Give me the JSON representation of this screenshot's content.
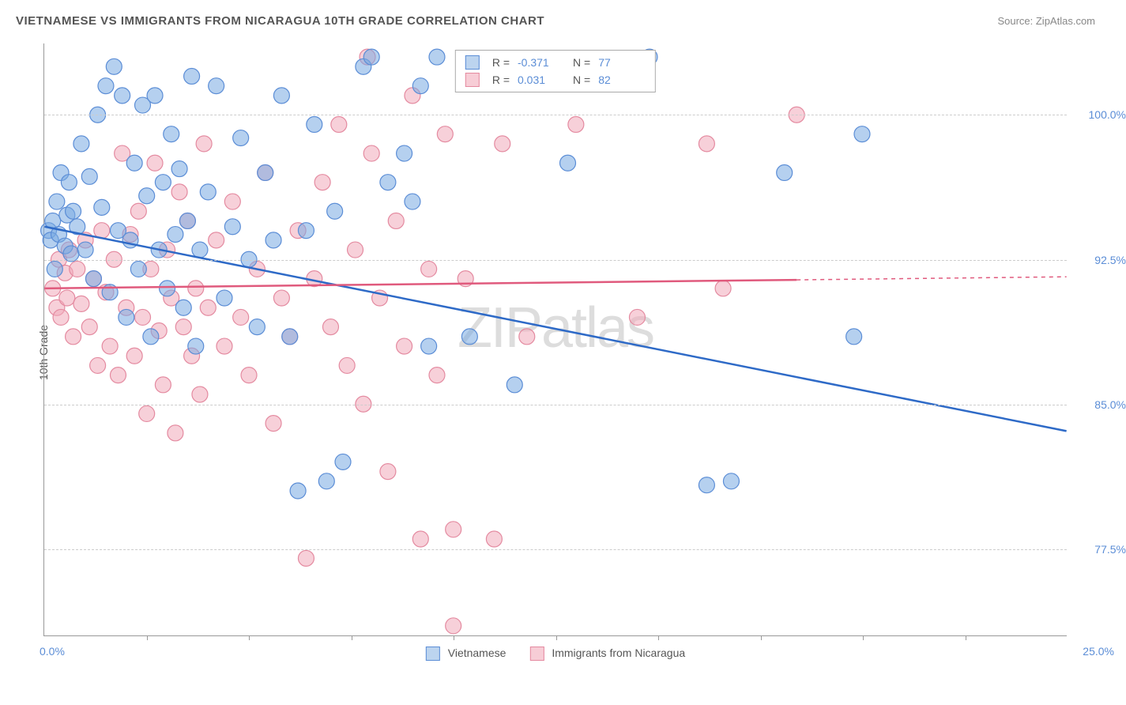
{
  "title": "VIETNAMESE VS IMMIGRANTS FROM NICARAGUA 10TH GRADE CORRELATION CHART",
  "source": "Source: ZipAtlas.com",
  "watermark": "ZIPatlas",
  "axes": {
    "y_label": "10th Grade",
    "x_min": 0.0,
    "x_max": 25.0,
    "y_min": 73.0,
    "y_max": 103.7,
    "y_ticks": [
      77.5,
      85.0,
      92.5,
      100.0
    ],
    "y_tick_labels": [
      "77.5%",
      "85.0%",
      "92.5%",
      "100.0%"
    ],
    "x_ticks_minor": [
      2.5,
      5.0,
      7.5,
      10.0,
      12.5,
      15.0,
      17.5,
      20.0,
      22.5
    ],
    "x_tick_labels": {
      "0": "0.0%",
      "25": "25.0%"
    },
    "grid_color": "#cccccc",
    "axis_color": "#999999"
  },
  "legend_bottom": {
    "series_a": {
      "label": "Vietnamese",
      "fill": "#bcd4ef",
      "stroke": "#5b8dd6"
    },
    "series_b": {
      "label": "Immigrants from Nicaragua",
      "fill": "#f7cdd6",
      "stroke": "#e48aa0"
    }
  },
  "stats": {
    "series_a": {
      "swatch_fill": "#bcd4ef",
      "swatch_stroke": "#5b8dd6",
      "R": "-0.371",
      "N": "77"
    },
    "series_b": {
      "swatch_fill": "#f7cdd6",
      "swatch_stroke": "#e48aa0",
      "R": "0.031",
      "N": "82"
    }
  },
  "series_a": {
    "name": "Vietnamese",
    "color_fill": "rgba(120,170,225,0.55)",
    "color_stroke": "#5b8dd6",
    "marker_radius": 10,
    "trend": {
      "x1": 0.0,
      "y1": 94.2,
      "x2": 25.0,
      "y2": 83.6,
      "color": "#2e6ac7",
      "width": 2.5
    },
    "points": [
      [
        0.1,
        94.0
      ],
      [
        0.15,
        93.5
      ],
      [
        0.2,
        94.5
      ],
      [
        0.25,
        92.0
      ],
      [
        0.3,
        95.5
      ],
      [
        0.35,
        93.8
      ],
      [
        0.4,
        97.0
      ],
      [
        0.5,
        93.2
      ],
      [
        0.55,
        94.8
      ],
      [
        0.6,
        96.5
      ],
      [
        0.65,
        92.8
      ],
      [
        0.7,
        95.0
      ],
      [
        0.8,
        94.2
      ],
      [
        0.9,
        98.5
      ],
      [
        1.0,
        93.0
      ],
      [
        1.1,
        96.8
      ],
      [
        1.2,
        91.5
      ],
      [
        1.3,
        100.0
      ],
      [
        1.4,
        95.2
      ],
      [
        1.5,
        101.5
      ],
      [
        1.6,
        90.8
      ],
      [
        1.7,
        102.5
      ],
      [
        1.8,
        94.0
      ],
      [
        1.9,
        101.0
      ],
      [
        2.0,
        89.5
      ],
      [
        2.1,
        93.5
      ],
      [
        2.2,
        97.5
      ],
      [
        2.3,
        92.0
      ],
      [
        2.4,
        100.5
      ],
      [
        2.5,
        95.8
      ],
      [
        2.6,
        88.5
      ],
      [
        2.7,
        101.0
      ],
      [
        2.8,
        93.0
      ],
      [
        2.9,
        96.5
      ],
      [
        3.0,
        91.0
      ],
      [
        3.1,
        99.0
      ],
      [
        3.2,
        93.8
      ],
      [
        3.3,
        97.2
      ],
      [
        3.4,
        90.0
      ],
      [
        3.5,
        94.5
      ],
      [
        3.6,
        102.0
      ],
      [
        3.7,
        88.0
      ],
      [
        3.8,
        93.0
      ],
      [
        4.0,
        96.0
      ],
      [
        4.2,
        101.5
      ],
      [
        4.4,
        90.5
      ],
      [
        4.6,
        94.2
      ],
      [
        4.8,
        98.8
      ],
      [
        5.0,
        92.5
      ],
      [
        5.2,
        89.0
      ],
      [
        5.4,
        97.0
      ],
      [
        5.6,
        93.5
      ],
      [
        5.8,
        101.0
      ],
      [
        6.0,
        88.5
      ],
      [
        6.2,
        80.5
      ],
      [
        6.4,
        94.0
      ],
      [
        6.6,
        99.5
      ],
      [
        6.9,
        81.0
      ],
      [
        7.1,
        95.0
      ],
      [
        7.3,
        82.0
      ],
      [
        7.8,
        102.5
      ],
      [
        8.0,
        103.0
      ],
      [
        8.4,
        96.5
      ],
      [
        8.8,
        98.0
      ],
      [
        9.0,
        95.5
      ],
      [
        9.2,
        101.5
      ],
      [
        9.4,
        88.0
      ],
      [
        9.6,
        103.0
      ],
      [
        10.4,
        88.5
      ],
      [
        11.5,
        86.0
      ],
      [
        12.8,
        97.5
      ],
      [
        14.8,
        103.0
      ],
      [
        16.2,
        80.8
      ],
      [
        16.8,
        81.0
      ],
      [
        18.1,
        97.0
      ],
      [
        19.8,
        88.5
      ],
      [
        20.0,
        99.0
      ]
    ]
  },
  "series_b": {
    "name": "Immigrants from Nicaragua",
    "color_fill": "rgba(240,170,185,0.55)",
    "color_stroke": "#e48aa0",
    "marker_radius": 10,
    "trend": {
      "x1": 0.0,
      "y1": 91.0,
      "x2": 25.0,
      "y2": 91.6,
      "solid_until_x": 18.4,
      "color": "#e05a7d",
      "width": 2.5
    },
    "points": [
      [
        0.2,
        91.0
      ],
      [
        0.3,
        90.0
      ],
      [
        0.35,
        92.5
      ],
      [
        0.4,
        89.5
      ],
      [
        0.5,
        91.8
      ],
      [
        0.55,
        90.5
      ],
      [
        0.6,
        93.0
      ],
      [
        0.7,
        88.5
      ],
      [
        0.8,
        92.0
      ],
      [
        0.9,
        90.2
      ],
      [
        1.0,
        93.5
      ],
      [
        1.1,
        89.0
      ],
      [
        1.2,
        91.5
      ],
      [
        1.3,
        87.0
      ],
      [
        1.4,
        94.0
      ],
      [
        1.5,
        90.8
      ],
      [
        1.6,
        88.0
      ],
      [
        1.7,
        92.5
      ],
      [
        1.8,
        86.5
      ],
      [
        1.9,
        98.0
      ],
      [
        2.0,
        90.0
      ],
      [
        2.1,
        93.8
      ],
      [
        2.2,
        87.5
      ],
      [
        2.3,
        95.0
      ],
      [
        2.4,
        89.5
      ],
      [
        2.5,
        84.5
      ],
      [
        2.6,
        92.0
      ],
      [
        2.7,
        97.5
      ],
      [
        2.8,
        88.8
      ],
      [
        2.9,
        86.0
      ],
      [
        3.0,
        93.0
      ],
      [
        3.1,
        90.5
      ],
      [
        3.2,
        83.5
      ],
      [
        3.3,
        96.0
      ],
      [
        3.4,
        89.0
      ],
      [
        3.5,
        94.5
      ],
      [
        3.6,
        87.5
      ],
      [
        3.7,
        91.0
      ],
      [
        3.8,
        85.5
      ],
      [
        3.9,
        98.5
      ],
      [
        4.0,
        90.0
      ],
      [
        4.2,
        93.5
      ],
      [
        4.4,
        88.0
      ],
      [
        4.6,
        95.5
      ],
      [
        4.8,
        89.5
      ],
      [
        5.0,
        86.5
      ],
      [
        5.2,
        92.0
      ],
      [
        5.4,
        97.0
      ],
      [
        5.6,
        84.0
      ],
      [
        5.8,
        90.5
      ],
      [
        6.0,
        88.5
      ],
      [
        6.2,
        94.0
      ],
      [
        6.4,
        77.0
      ],
      [
        6.6,
        91.5
      ],
      [
        6.8,
        96.5
      ],
      [
        7.0,
        89.0
      ],
      [
        7.2,
        99.5
      ],
      [
        7.4,
        87.0
      ],
      [
        7.6,
        93.0
      ],
      [
        7.8,
        85.0
      ],
      [
        8.0,
        98.0
      ],
      [
        8.2,
        90.5
      ],
      [
        8.4,
        81.5
      ],
      [
        8.6,
        94.5
      ],
      [
        8.8,
        88.0
      ],
      [
        9.0,
        101.0
      ],
      [
        9.2,
        78.0
      ],
      [
        9.4,
        92.0
      ],
      [
        9.6,
        86.5
      ],
      [
        9.8,
        99.0
      ],
      [
        10.0,
        78.5
      ],
      [
        10.0,
        73.5
      ],
      [
        10.3,
        91.5
      ],
      [
        11.2,
        98.5
      ],
      [
        11.8,
        88.5
      ],
      [
        13.0,
        99.5
      ],
      [
        14.5,
        89.5
      ],
      [
        16.2,
        98.5
      ],
      [
        16.6,
        91.0
      ],
      [
        18.4,
        100.0
      ],
      [
        11.0,
        78.0
      ],
      [
        7.9,
        103.0
      ]
    ]
  }
}
